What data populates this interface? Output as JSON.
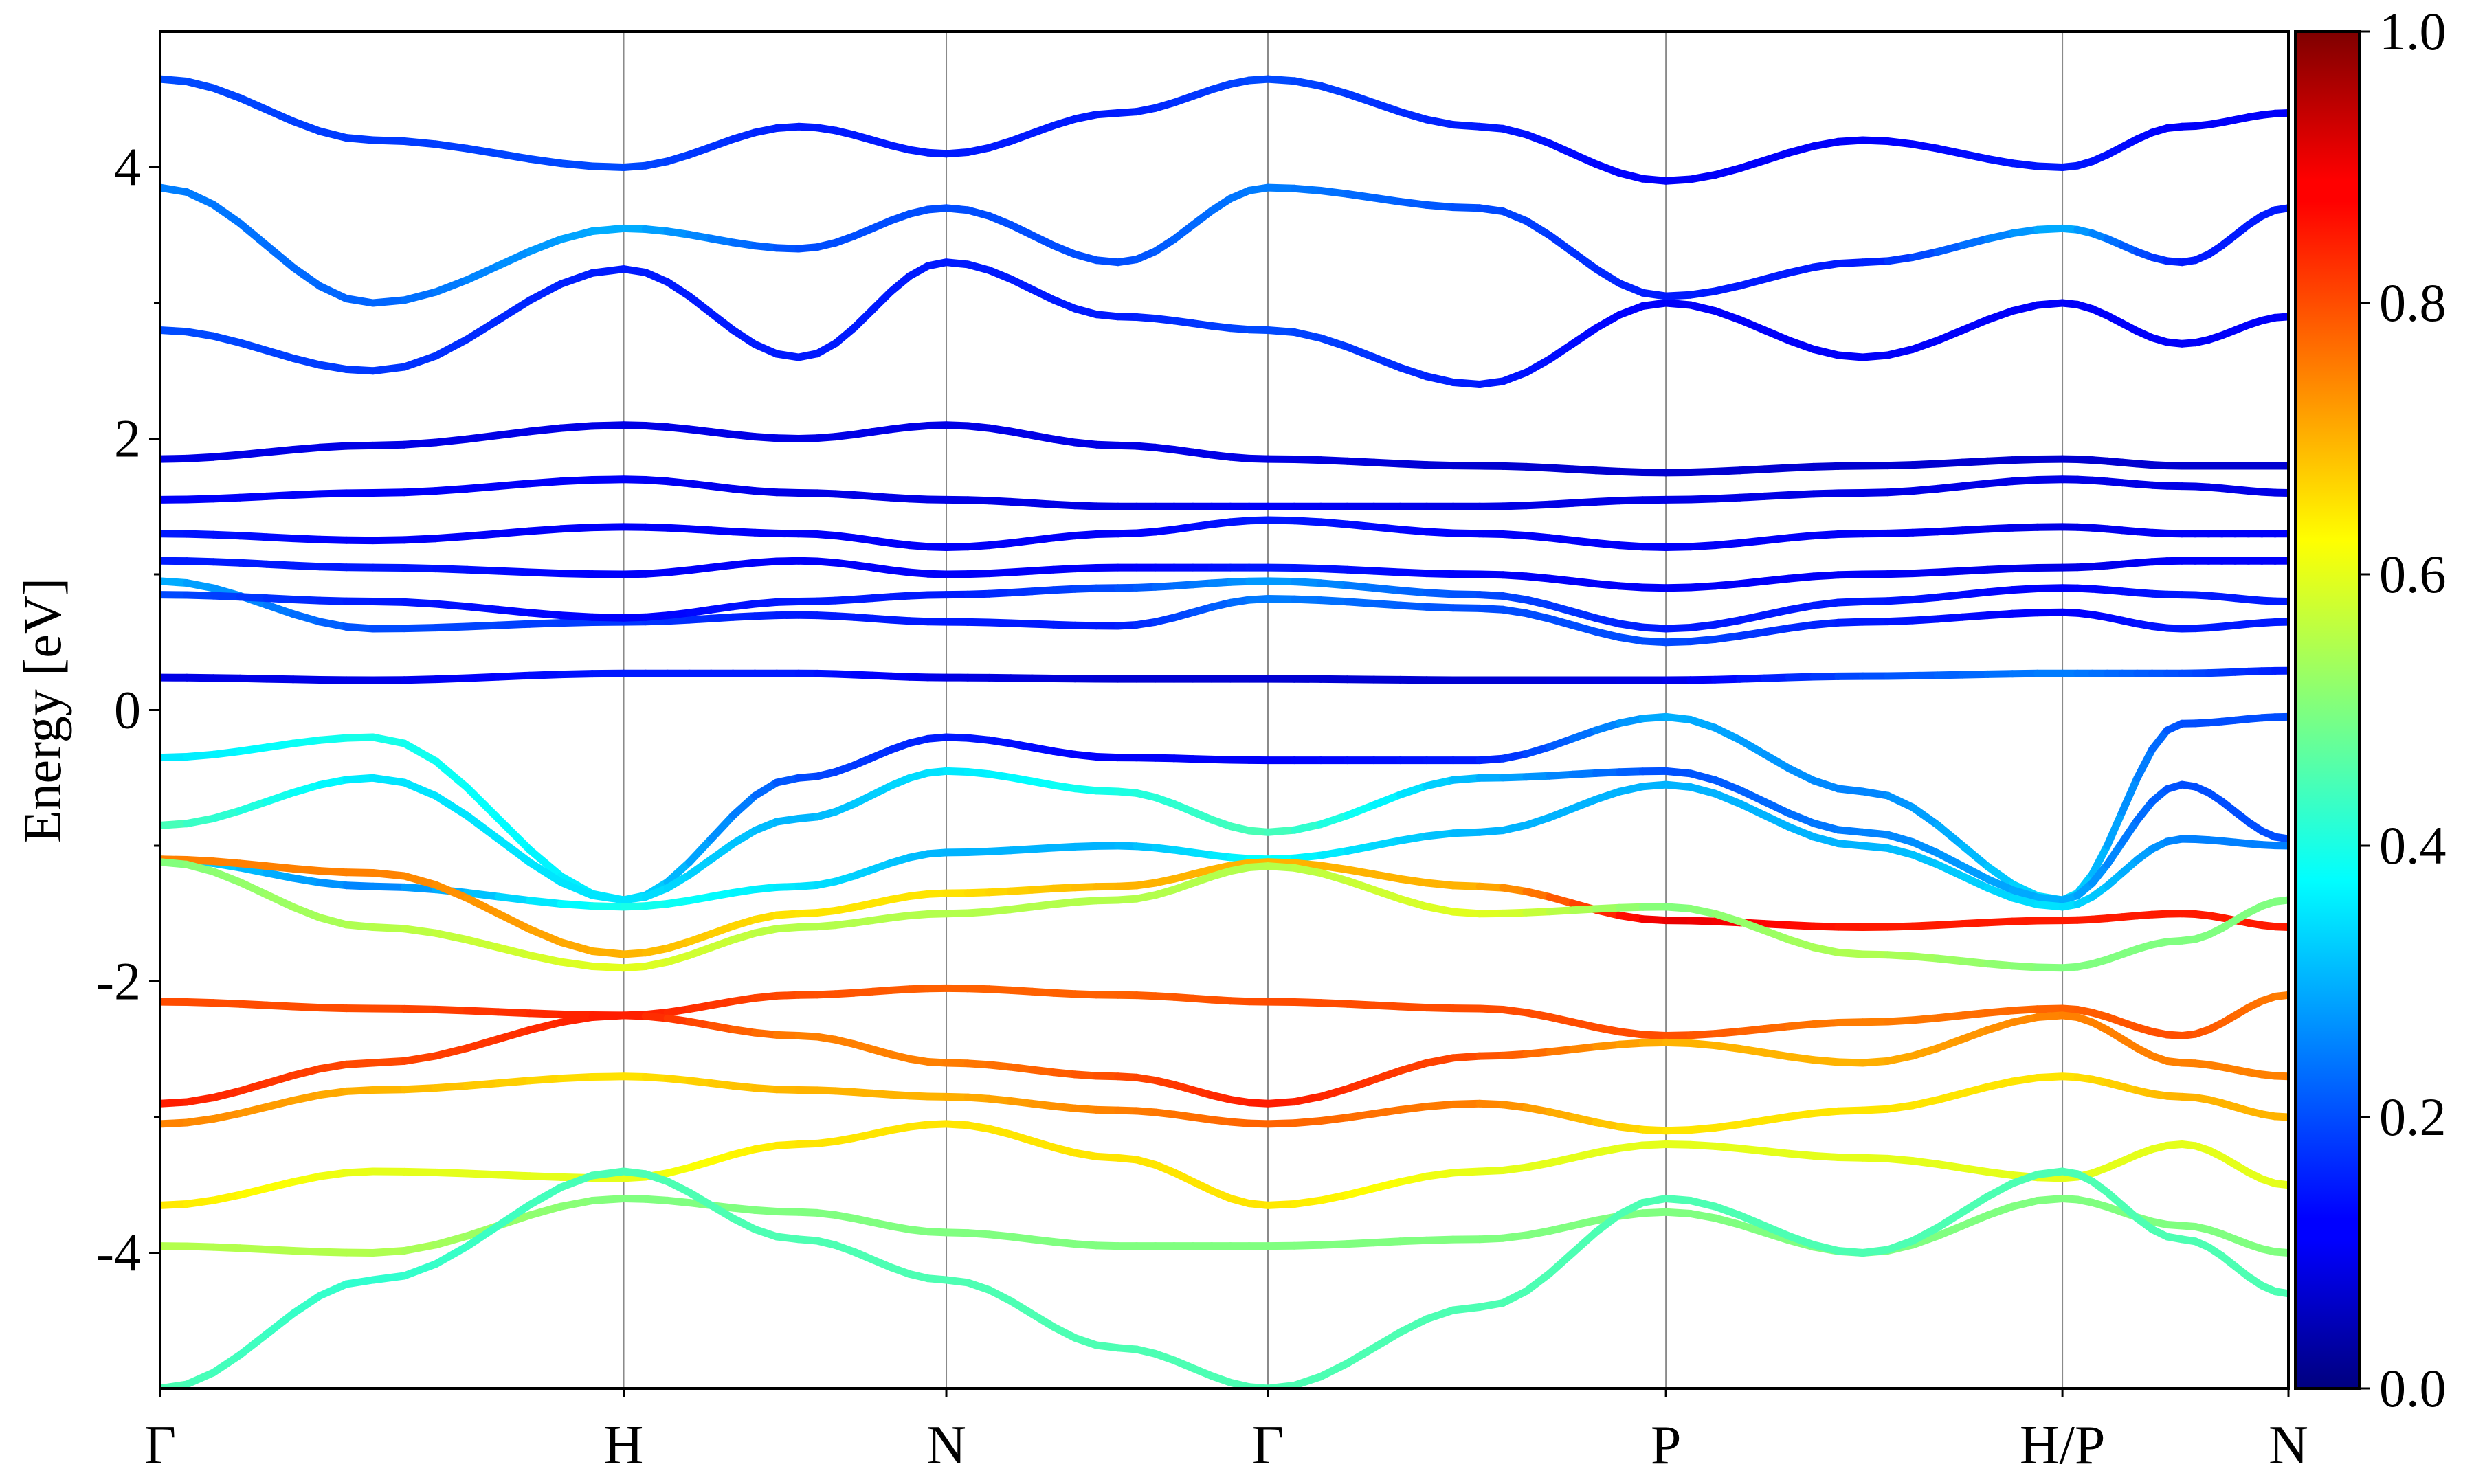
{
  "chart_data": {
    "type": "line",
    "title": "",
    "xlabel": "",
    "ylabel": "Energy [eV]",
    "ylim": [
      -5,
      5
    ],
    "yticks": [
      -4,
      -2,
      0,
      2,
      4
    ],
    "ytick_labels": [
      "-4",
      "-2",
      "0",
      "2",
      "4"
    ],
    "kpath_labels": [
      "Γ",
      "H",
      "N",
      "Γ",
      "P",
      "H/P",
      "N"
    ],
    "kpath_positions": [
      0,
      0.2178,
      0.3694,
      0.5205,
      0.7075,
      0.8938,
      1.0
    ],
    "colorbar": {
      "colormap": "jet",
      "range": [
        0.0,
        1.0
      ],
      "ticks": [
        0.0,
        0.2,
        0.4,
        0.6,
        0.8,
        1.0
      ],
      "tick_labels": [
        "0.0",
        "0.2",
        "0.4",
        "0.6",
        "0.8",
        "1.0"
      ]
    },
    "legend": "none",
    "grid": "vertical lines at high-symmetry points",
    "series": [
      {
        "x": [
          0,
          0.1,
          0.2178,
          0.3,
          0.3694,
          0.45,
          0.5205,
          0.62,
          0.7075,
          0.8,
          0.8938,
          0.95,
          1.0
        ],
        "y": [
          0.24,
          0.22,
          0.27,
          0.27,
          0.24,
          0.23,
          0.23,
          0.22,
          0.22,
          0.25,
          0.27,
          0.27,
          0.29
        ],
        "c": [
          0.1,
          0.1,
          0.15,
          0.15,
          0.1,
          0.08,
          0.08,
          0.08,
          0.1,
          0.2,
          0.25,
          0.2,
          0.15
        ]
      },
      {
        "x": [
          0,
          0.1,
          0.2178,
          0.3,
          0.3694,
          0.45,
          0.5205,
          0.62,
          0.7075,
          0.8,
          0.8938,
          0.95,
          1.0
        ],
        "y": [
          0.95,
          0.6,
          0.65,
          0.7,
          0.65,
          0.62,
          0.82,
          0.75,
          0.5,
          0.65,
          0.72,
          0.6,
          0.65
        ],
        "c": [
          0.3,
          0.2,
          0.18,
          0.15,
          0.15,
          0.15,
          0.25,
          0.2,
          0.2,
          0.15,
          0.12,
          0.15,
          0.15
        ]
      },
      {
        "x": [
          0,
          0.1,
          0.2178,
          0.3,
          0.3694,
          0.45,
          0.5205,
          0.62,
          0.7075,
          0.8,
          0.8938,
          0.95,
          1.0
        ],
        "y": [
          0.85,
          0.8,
          0.68,
          0.8,
          0.85,
          0.9,
          0.95,
          0.85,
          0.6,
          0.8,
          0.9,
          0.85,
          0.8
        ],
        "c": [
          0.2,
          0.15,
          0.12,
          0.15,
          0.15,
          0.2,
          0.28,
          0.2,
          0.15,
          0.15,
          0.12,
          0.15,
          0.15
        ]
      },
      {
        "x": [
          0,
          0.1,
          0.2178,
          0.3,
          0.3694,
          0.45,
          0.5205,
          0.62,
          0.7075,
          0.8,
          0.8938,
          0.95,
          1.0
        ],
        "y": [
          1.1,
          1.05,
          1.0,
          1.1,
          1.0,
          1.05,
          1.05,
          1.0,
          0.9,
          1.0,
          1.05,
          1.1,
          1.1
        ],
        "c": [
          0.15,
          0.15,
          0.12,
          0.12,
          0.12,
          0.12,
          0.15,
          0.12,
          0.12,
          0.12,
          0.1,
          0.12,
          0.12
        ]
      },
      {
        "x": [
          0,
          0.1,
          0.2178,
          0.3,
          0.3694,
          0.45,
          0.5205,
          0.62,
          0.7075,
          0.8,
          0.8938,
          0.95,
          1.0
        ],
        "y": [
          1.3,
          1.25,
          1.35,
          1.3,
          1.2,
          1.3,
          1.4,
          1.3,
          1.2,
          1.3,
          1.35,
          1.3,
          1.3
        ],
        "c": [
          0.15,
          0.12,
          0.12,
          0.12,
          0.12,
          0.12,
          0.15,
          0.12,
          0.12,
          0.12,
          0.1,
          0.12,
          0.12
        ]
      },
      {
        "x": [
          0,
          0.1,
          0.2178,
          0.3,
          0.3694,
          0.45,
          0.5205,
          0.62,
          0.7075,
          0.8,
          0.8938,
          0.95,
          1.0
        ],
        "y": [
          1.55,
          1.6,
          1.7,
          1.6,
          1.55,
          1.5,
          1.5,
          1.5,
          1.55,
          1.6,
          1.7,
          1.65,
          1.6
        ],
        "c": [
          0.12,
          0.12,
          0.12,
          0.1,
          0.1,
          0.1,
          0.12,
          0.1,
          0.1,
          0.1,
          0.1,
          0.1,
          0.1
        ]
      },
      {
        "x": [
          0,
          0.1,
          0.2178,
          0.3,
          0.3694,
          0.45,
          0.5205,
          0.62,
          0.7075,
          0.8,
          0.8938,
          0.95,
          1.0
        ],
        "y": [
          1.85,
          1.95,
          2.1,
          2.0,
          2.1,
          1.95,
          1.85,
          1.8,
          1.75,
          1.8,
          1.85,
          1.8,
          1.8
        ],
        "c": [
          0.1,
          0.1,
          0.1,
          0.1,
          0.1,
          0.1,
          0.1,
          0.08,
          0.08,
          0.08,
          0.08,
          0.08,
          0.08
        ]
      },
      {
        "x": [
          0,
          0.1,
          0.2178,
          0.3,
          0.3694,
          0.45,
          0.5205,
          0.62,
          0.7075,
          0.8,
          0.8938,
          0.95,
          1.0
        ],
        "y": [
          2.8,
          2.5,
          3.25,
          2.6,
          3.3,
          2.9,
          2.8,
          2.4,
          3.0,
          2.6,
          3.0,
          2.7,
          2.9
        ],
        "c": [
          0.2,
          0.18,
          0.15,
          0.15,
          0.15,
          0.15,
          0.2,
          0.15,
          0.12,
          0.12,
          0.12,
          0.12,
          0.12
        ]
      },
      {
        "x": [
          0,
          0.1,
          0.2178,
          0.3,
          0.3694,
          0.45,
          0.5205,
          0.62,
          0.7075,
          0.8,
          0.8938,
          0.95,
          1.0
        ],
        "y": [
          3.85,
          3.0,
          3.55,
          3.4,
          3.7,
          3.3,
          3.85,
          3.7,
          3.05,
          3.3,
          3.55,
          3.3,
          3.7
        ],
        "c": [
          0.25,
          0.22,
          0.3,
          0.2,
          0.2,
          0.2,
          0.25,
          0.2,
          0.15,
          0.15,
          0.3,
          0.15,
          0.15
        ]
      },
      {
        "x": [
          0,
          0.1,
          0.2178,
          0.3,
          0.3694,
          0.45,
          0.5205,
          0.62,
          0.7075,
          0.8,
          0.8938,
          0.95,
          1.0
        ],
        "y": [
          4.65,
          4.2,
          4.0,
          4.3,
          4.1,
          4.4,
          4.65,
          4.3,
          3.9,
          4.2,
          4.0,
          4.3,
          4.4
        ],
        "c": [
          0.2,
          0.18,
          0.2,
          0.15,
          0.15,
          0.15,
          0.2,
          0.15,
          0.12,
          0.12,
          0.15,
          0.12,
          0.12
        ]
      },
      {
        "x": [
          0,
          0.1,
          0.2178,
          0.3,
          0.3694,
          0.45,
          0.5205,
          0.62,
          0.7075,
          0.8,
          0.8938,
          0.95,
          1.0
        ],
        "y": [
          -0.35,
          -0.2,
          -1.4,
          -0.5,
          -0.2,
          -0.35,
          -0.37,
          -0.37,
          -0.05,
          -0.6,
          -1.4,
          -0.1,
          -0.05
        ],
        "c": [
          0.35,
          0.4,
          0.35,
          0.2,
          0.15,
          0.12,
          0.12,
          0.15,
          0.3,
          0.25,
          0.35,
          0.2,
          0.2
        ]
      },
      {
        "x": [
          0,
          0.1,
          0.2178,
          0.3,
          0.3694,
          0.45,
          0.5205,
          0.62,
          0.7075,
          0.8,
          0.8938,
          0.95,
          1.0
        ],
        "y": [
          -0.85,
          -0.5,
          -1.4,
          -0.8,
          -0.45,
          -0.6,
          -0.9,
          -0.5,
          -0.45,
          -0.9,
          -1.4,
          -0.55,
          -0.95
        ],
        "c": [
          0.45,
          0.35,
          0.35,
          0.3,
          0.35,
          0.4,
          0.45,
          0.3,
          0.2,
          0.25,
          0.3,
          0.2,
          0.2
        ]
      },
      {
        "x": [
          0,
          0.1,
          0.2178,
          0.3,
          0.3694,
          0.45,
          0.5205,
          0.62,
          0.7075,
          0.8,
          0.8938,
          0.95,
          1.0
        ],
        "y": [
          -1.1,
          -1.3,
          -1.45,
          -1.3,
          -1.05,
          -1.0,
          -1.1,
          -0.9,
          -0.55,
          -1.0,
          -1.45,
          -0.95,
          -1.0
        ],
        "c": [
          0.35,
          0.25,
          0.4,
          0.35,
          0.3,
          0.3,
          0.38,
          0.3,
          0.3,
          0.3,
          0.35,
          0.25,
          0.25
        ]
      },
      {
        "x": [
          0,
          0.1,
          0.2178,
          0.3,
          0.3694,
          0.45,
          0.5205,
          0.62,
          0.7075,
          0.8,
          0.8938,
          0.95,
          1.0
        ],
        "y": [
          -1.1,
          -1.2,
          -1.8,
          -1.5,
          -1.35,
          -1.3,
          -1.12,
          -1.3,
          -1.55,
          -1.6,
          -1.55,
          -1.5,
          -1.6
        ],
        "c": [
          0.75,
          0.75,
          0.7,
          0.65,
          0.65,
          0.7,
          0.7,
          0.7,
          0.9,
          0.85,
          0.85,
          0.85,
          0.85
        ]
      },
      {
        "x": [
          0,
          0.1,
          0.2178,
          0.3,
          0.3694,
          0.45,
          0.5205,
          0.62,
          0.7075,
          0.8,
          0.8938,
          0.95,
          1.0
        ],
        "y": [
          -1.12,
          -1.6,
          -1.9,
          -1.6,
          -1.5,
          -1.4,
          -1.15,
          -1.5,
          -1.45,
          -1.8,
          -1.9,
          -1.7,
          -1.4
        ],
        "c": [
          0.5,
          0.55,
          0.6,
          0.55,
          0.55,
          0.55,
          0.55,
          0.6,
          0.5,
          0.55,
          0.5,
          0.5,
          0.5
        ]
      },
      {
        "x": [
          0,
          0.1,
          0.2178,
          0.3,
          0.3694,
          0.45,
          0.5205,
          0.62,
          0.7075,
          0.8,
          0.8938,
          0.95,
          1.0
        ],
        "y": [
          -2.15,
          -2.2,
          -2.25,
          -2.1,
          -2.05,
          -2.1,
          -2.15,
          -2.2,
          -2.4,
          -2.3,
          -2.2,
          -2.4,
          -2.1
        ],
        "c": [
          0.8,
          0.8,
          0.85,
          0.8,
          0.78,
          0.78,
          0.8,
          0.8,
          0.8,
          0.75,
          0.78,
          0.8,
          0.75
        ]
      },
      {
        "x": [
          0,
          0.1,
          0.2178,
          0.3,
          0.3694,
          0.45,
          0.5205,
          0.62,
          0.7075,
          0.8,
          0.8938,
          0.95,
          1.0
        ],
        "y": [
          -2.9,
          -2.6,
          -2.25,
          -2.4,
          -2.6,
          -2.7,
          -2.9,
          -2.55,
          -2.45,
          -2.6,
          -2.25,
          -2.6,
          -2.7
        ],
        "c": [
          0.85,
          0.8,
          0.85,
          0.75,
          0.75,
          0.8,
          0.85,
          0.8,
          0.7,
          0.7,
          0.75,
          0.75,
          0.75
        ]
      },
      {
        "x": [
          0,
          0.1,
          0.2178,
          0.3,
          0.3694,
          0.45,
          0.5205,
          0.62,
          0.7075,
          0.8,
          0.8938,
          0.95,
          1.0
        ],
        "y": [
          -3.05,
          -2.8,
          -2.7,
          -2.8,
          -2.85,
          -2.95,
          -3.05,
          -2.9,
          -3.1,
          -2.95,
          -2.7,
          -2.85,
          -3.0
        ],
        "c": [
          0.75,
          0.7,
          0.65,
          0.7,
          0.7,
          0.75,
          0.78,
          0.75,
          0.65,
          0.65,
          0.65,
          0.7,
          0.7
        ]
      },
      {
        "x": [
          0,
          0.1,
          0.2178,
          0.3,
          0.3694,
          0.45,
          0.5205,
          0.62,
          0.7075,
          0.8,
          0.8938,
          0.95,
          1.0
        ],
        "y": [
          -3.65,
          -3.4,
          -3.45,
          -3.2,
          -3.05,
          -3.3,
          -3.65,
          -3.4,
          -3.2,
          -3.3,
          -3.45,
          -3.2,
          -3.5
        ],
        "c": [
          0.65,
          0.6,
          0.6,
          0.65,
          0.65,
          0.65,
          0.65,
          0.6,
          0.6,
          0.6,
          0.6,
          0.6,
          0.6
        ]
      },
      {
        "x": [
          0,
          0.1,
          0.2178,
          0.3,
          0.3694,
          0.45,
          0.5205,
          0.62,
          0.7075,
          0.8,
          0.8938,
          0.95,
          1.0
        ],
        "y": [
          -3.95,
          -4.0,
          -3.6,
          -3.7,
          -3.85,
          -3.95,
          -3.95,
          -3.9,
          -3.7,
          -4.0,
          -3.6,
          -3.8,
          -4.0
        ],
        "c": [
          0.55,
          0.55,
          0.5,
          0.5,
          0.5,
          0.5,
          0.5,
          0.5,
          0.5,
          0.5,
          0.5,
          0.5,
          0.5
        ]
      },
      {
        "x": [
          0,
          0.1,
          0.2178,
          0.3,
          0.3694,
          0.45,
          0.5205,
          0.62,
          0.7075,
          0.8,
          0.8938,
          0.95,
          1.0
        ],
        "y": [
          -5.0,
          -4.2,
          -3.4,
          -3.9,
          -4.2,
          -4.7,
          -5.0,
          -4.4,
          -3.6,
          -4.0,
          -3.4,
          -3.9,
          -4.3
        ],
        "c": [
          0.45,
          0.42,
          0.45,
          0.45,
          0.45,
          0.45,
          0.45,
          0.45,
          0.45,
          0.45,
          0.45,
          0.45,
          0.45
        ]
      }
    ]
  }
}
